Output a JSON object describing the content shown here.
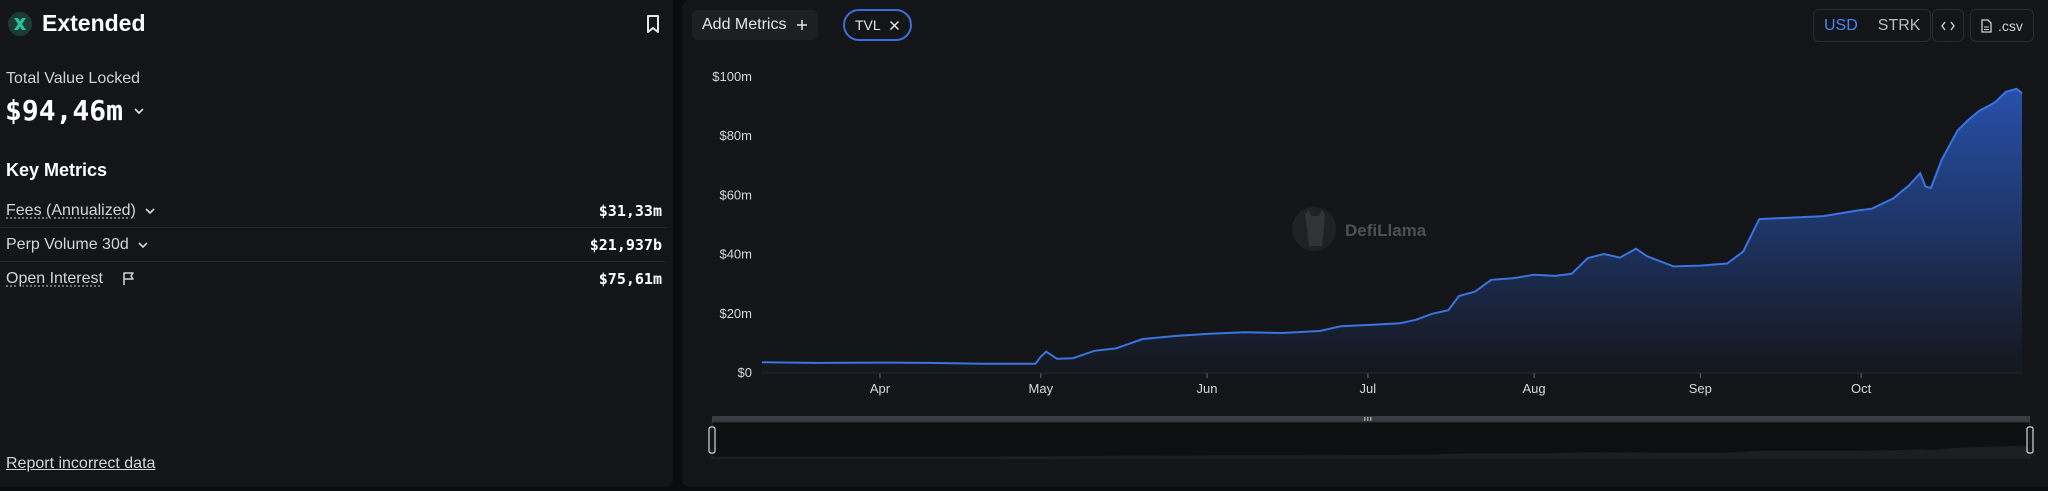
{
  "brand": {
    "name": "Extended"
  },
  "tvl": {
    "label": "Total Value Locked",
    "value": "$94,46m"
  },
  "key_metrics": {
    "title": "Key Metrics",
    "items": [
      {
        "name": "Fees (Annualized)",
        "value": "$31,33m",
        "dotted": true,
        "has_chevron": true,
        "icon": ""
      },
      {
        "name": "Perp Volume 30d",
        "value": "$21,937b",
        "dotted": false,
        "has_chevron": true,
        "icon": ""
      },
      {
        "name": "Open Interest",
        "value": "$75,61m",
        "dotted": true,
        "has_chevron": false,
        "icon": "flag-icon"
      }
    ]
  },
  "report_link": "Report incorrect data",
  "toolbar": {
    "add_metrics_label": "Add Metrics",
    "tvl_chip_label": "TVL",
    "currency_options": [
      "USD",
      "STRK"
    ],
    "selected_currency": "USD",
    "csv_label": ".csv",
    "embed_icon": "code-icon"
  },
  "watermark": "DefiLlama",
  "colors": {
    "accent": "#3b6fd6",
    "line": "#3a74e0",
    "brand_green": "#25c196"
  },
  "chart_data": {
    "type": "area",
    "title": "",
    "xlabel": "",
    "ylabel": "",
    "x_range": [
      "2025-03-10",
      "2025-10-31"
    ],
    "ylim": [
      0,
      100
    ],
    "y_unit": "$m",
    "y_tick_labels": [
      "$0",
      "$20m",
      "$40m",
      "$60m",
      "$80m",
      "$100m"
    ],
    "x_ticks": [
      {
        "date": "2025-04-01",
        "label": "Apr"
      },
      {
        "date": "2025-05-01",
        "label": "May"
      },
      {
        "date": "2025-06-01",
        "label": "Jun"
      },
      {
        "date": "2025-07-01",
        "label": "Jul"
      },
      {
        "date": "2025-08-01",
        "label": "Aug"
      },
      {
        "date": "2025-09-01",
        "label": "Sep"
      },
      {
        "date": "2025-10-01",
        "label": "Oct"
      }
    ],
    "grid": false,
    "series": [
      {
        "name": "TVL",
        "points": [
          [
            "2025-03-10",
            3.6
          ],
          [
            "2025-03-20",
            3.4
          ],
          [
            "2025-04-01",
            3.5
          ],
          [
            "2025-04-10",
            3.4
          ],
          [
            "2025-04-20",
            3.1
          ],
          [
            "2025-04-30",
            3.1
          ],
          [
            "2025-05-01",
            5.5
          ],
          [
            "2025-05-02",
            7.2
          ],
          [
            "2025-05-04",
            4.8
          ],
          [
            "2025-05-07",
            5.0
          ],
          [
            "2025-05-11",
            7.5
          ],
          [
            "2025-05-15",
            8.3
          ],
          [
            "2025-05-20",
            11.5
          ],
          [
            "2025-05-26",
            12.5
          ],
          [
            "2025-06-01",
            13.2
          ],
          [
            "2025-06-08",
            13.8
          ],
          [
            "2025-06-15",
            13.5
          ],
          [
            "2025-06-22",
            14.2
          ],
          [
            "2025-06-26",
            15.8
          ],
          [
            "2025-07-01",
            16.2
          ],
          [
            "2025-07-07",
            16.8
          ],
          [
            "2025-07-10",
            18.0
          ],
          [
            "2025-07-13",
            20.0
          ],
          [
            "2025-07-16",
            21.2
          ],
          [
            "2025-07-18",
            26.0
          ],
          [
            "2025-07-21",
            27.5
          ],
          [
            "2025-07-24",
            31.5
          ],
          [
            "2025-07-28",
            32.0
          ],
          [
            "2025-08-01",
            33.2
          ],
          [
            "2025-08-05",
            32.8
          ],
          [
            "2025-08-08",
            33.5
          ],
          [
            "2025-08-11",
            38.8
          ],
          [
            "2025-08-14",
            40.2
          ],
          [
            "2025-08-17",
            39.0
          ],
          [
            "2025-08-20",
            42.0
          ],
          [
            "2025-08-22",
            39.5
          ],
          [
            "2025-08-27",
            36.0
          ],
          [
            "2025-09-01",
            36.3
          ],
          [
            "2025-09-06",
            37.0
          ],
          [
            "2025-09-09",
            41.0
          ],
          [
            "2025-09-12",
            52.0
          ],
          [
            "2025-09-18",
            52.5
          ],
          [
            "2025-09-24",
            53.0
          ],
          [
            "2025-09-30",
            54.8
          ],
          [
            "2025-10-03",
            55.5
          ],
          [
            "2025-10-07",
            59.0
          ],
          [
            "2025-10-10",
            63.5
          ],
          [
            "2025-10-12",
            67.5
          ],
          [
            "2025-10-13",
            63.0
          ],
          [
            "2025-10-14",
            62.5
          ],
          [
            "2025-10-16",
            72.0
          ],
          [
            "2025-10-19",
            82.0
          ],
          [
            "2025-10-21",
            85.5
          ],
          [
            "2025-10-23",
            88.5
          ],
          [
            "2025-10-26",
            91.5
          ],
          [
            "2025-10-28",
            95.0
          ],
          [
            "2025-10-30",
            96.0
          ],
          [
            "2025-10-31",
            94.5
          ]
        ]
      }
    ]
  }
}
